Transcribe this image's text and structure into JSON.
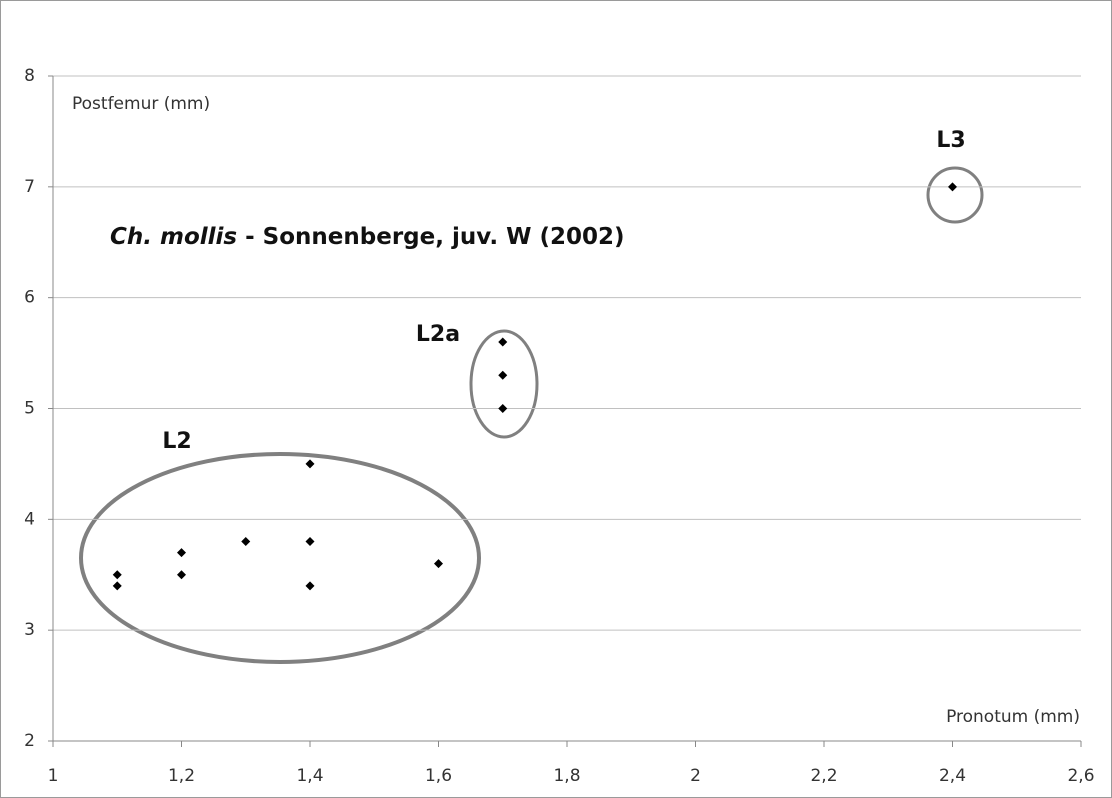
{
  "chart_data": {
    "type": "scatter",
    "title_species": "Ch. mollis",
    "title": "- Sonnenberge, juv. W (2002)",
    "y_label": "Postfemur (mm)",
    "x_label": "Pronotum (mm)",
    "x": [
      1.1,
      1.1,
      1.2,
      1.2,
      1.3,
      1.4,
      1.4,
      1.4,
      1.6,
      1.7,
      1.7,
      1.7,
      2.4
    ],
    "series": [
      {
        "color": "#000000",
        "values": [
          3.5,
          3.4,
          3.7,
          3.5,
          3.8,
          4.5,
          3.8,
          3.4,
          3.6,
          5.6,
          5.3,
          5.0,
          7.0
        ]
      }
    ],
    "xlim": [
      1,
      2.6
    ],
    "xticks": [
      1,
      {
        "value": 1.2,
        "label": "1,2"
      },
      {
        "value": 1.4,
        "label": "1,4"
      },
      {
        "value": 1.6,
        "label": "1,6"
      },
      {
        "value": 1.8,
        "label": "1,8"
      },
      2,
      {
        "value": 2.2,
        "label": "2,2"
      },
      {
        "value": 2.4,
        "label": "2,4"
      },
      {
        "value": 2.6,
        "label": "2,6"
      }
    ],
    "ylim": [
      2,
      8
    ],
    "yticks": [
      2,
      3,
      4,
      5,
      6,
      7,
      8
    ],
    "grid": true,
    "annotations": [
      "L2",
      "L2a",
      "L3"
    ]
  }
}
